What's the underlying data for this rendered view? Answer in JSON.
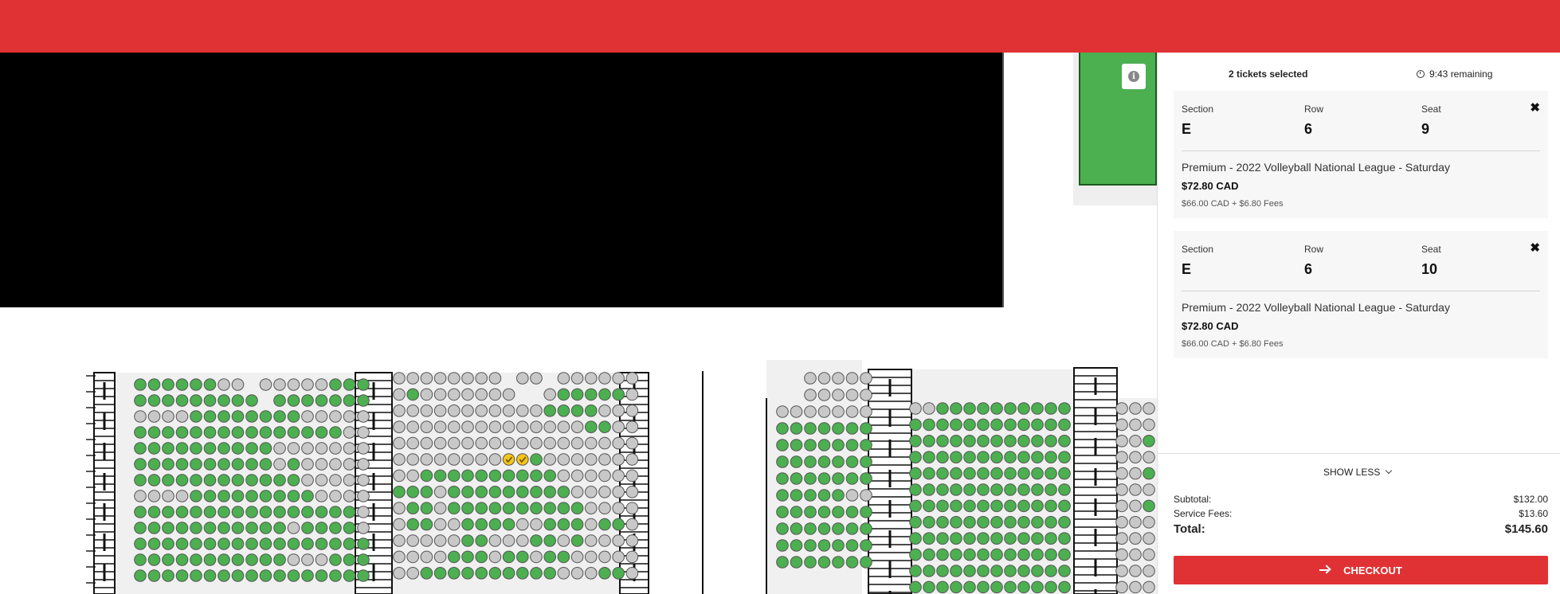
{
  "cart": {
    "selected_text": "2 tickets selected",
    "timer_text": "9:43 remaining",
    "labels": {
      "section": "Section",
      "row": "Row",
      "seat": "Seat"
    },
    "tickets": [
      {
        "section": "E",
        "row": "6",
        "seat": "9",
        "title": "Premium - 2022 Volleyball National League - Saturday",
        "price": "$72.80 CAD",
        "fees": "$66.00 CAD + $6.80 Fees"
      },
      {
        "section": "E",
        "row": "6",
        "seat": "10",
        "title": "Premium - 2022 Volleyball National League - Saturday",
        "price": "$72.80 CAD",
        "fees": "$66.00 CAD + $6.80 Fees"
      }
    ],
    "show_less": "SHOW LESS",
    "subtotal_label": "Subtotal:",
    "subtotal": "$132.00",
    "service_label": "Service Fees:",
    "service": "$13.60",
    "total_label": "Total:",
    "total": "$145.60",
    "checkout": "CHECKOUT"
  },
  "colors": {
    "brand_red": "#e03234",
    "seat_available": "#4caf50",
    "seat_unavailable": "#c8c8c8",
    "seat_selected": "#f5c518"
  },
  "seat_map": {
    "blocks": [
      {
        "rows": [
          "AAAAAAGG.GGGGGAAA",
          "AAAAAAAAA.AAAAAAA",
          "GGGGAAAAAAAAGGGGG",
          "AAAAAAAAAAAAAAAGG",
          "AAAAAAAAAAGGGGGGG",
          "AAAAAAAAAAGAGGGGG",
          "AAAAAAAAAAAAGGGGG",
          "GGGGAAAAAAAAAGGGG",
          "AAAAAAAAAAAAAAAAG",
          "AAAAAAAAAAAGAAAAG",
          "AAAAAAAAAAAAAAAAA",
          "AAAAAAAAAAAGGGAAA",
          "AAAAAAAAAAAAAAAAA"
        ]
      },
      {
        "rows": [
          "GGGGGGGG.GG.GGGGGG",
          "GAGGGGGGG..GAAAAAG",
          "GGGGGGGGGGGAAAAGGG",
          "GGGGGGGGGGGGGGAAGG",
          "GGGGGGGGGGGGGGGGGG",
          "GGGGGGGGSSAGGGGGGG",
          "GGAAAAAAAAAAGGGGGG",
          "AAAGAAAAAAAAAGGGGG",
          "GAAGAAAAAAAAAAGGGG",
          "GAAGGAAAAGGAAAGAAG",
          "GGGGGAAGGGAAGAGGGG",
          "GGGGAAAGAAGAAGGGGG",
          "GGAAAAAAAAAAGGGAAG"
        ]
      },
      {
        "rows": [
          "..GGGGG",
          "..GGGGG",
          "GGGGGGG",
          "AAAAAAA",
          "AAAAAAA",
          "AAAAAAA",
          "AAAAAAA",
          "AAAAAGG",
          "AAAAAAA",
          "AAAAAAA",
          "AAAAAAA",
          "AAAAAAA"
        ]
      },
      {
        "rows": [
          "GGAAAAAAAAAA",
          "AAAAAAAAAAAA",
          "AAAAAAAAAAAA",
          "AAAAAAAAAAAA",
          "AAAAAAAAAAAA",
          "AAAAAAAAAAAA",
          "AAAAAAAAAAAA",
          "AAAAAAAAAAAA",
          "AAAAAAAAAAAA",
          "AAAAAAAAAAAA",
          "AAAAAAAAAAAA",
          "AAAAAAAAAAAA",
          "AAAAAAAAAAAA"
        ]
      },
      {
        "rows": [
          "GGG",
          "GGG",
          "GGA",
          "GGG",
          "GGA",
          "GGG",
          "GGA",
          "GGG",
          "GGG",
          "GGG",
          "GGG",
          "GGG",
          "GGG"
        ]
      }
    ]
  }
}
